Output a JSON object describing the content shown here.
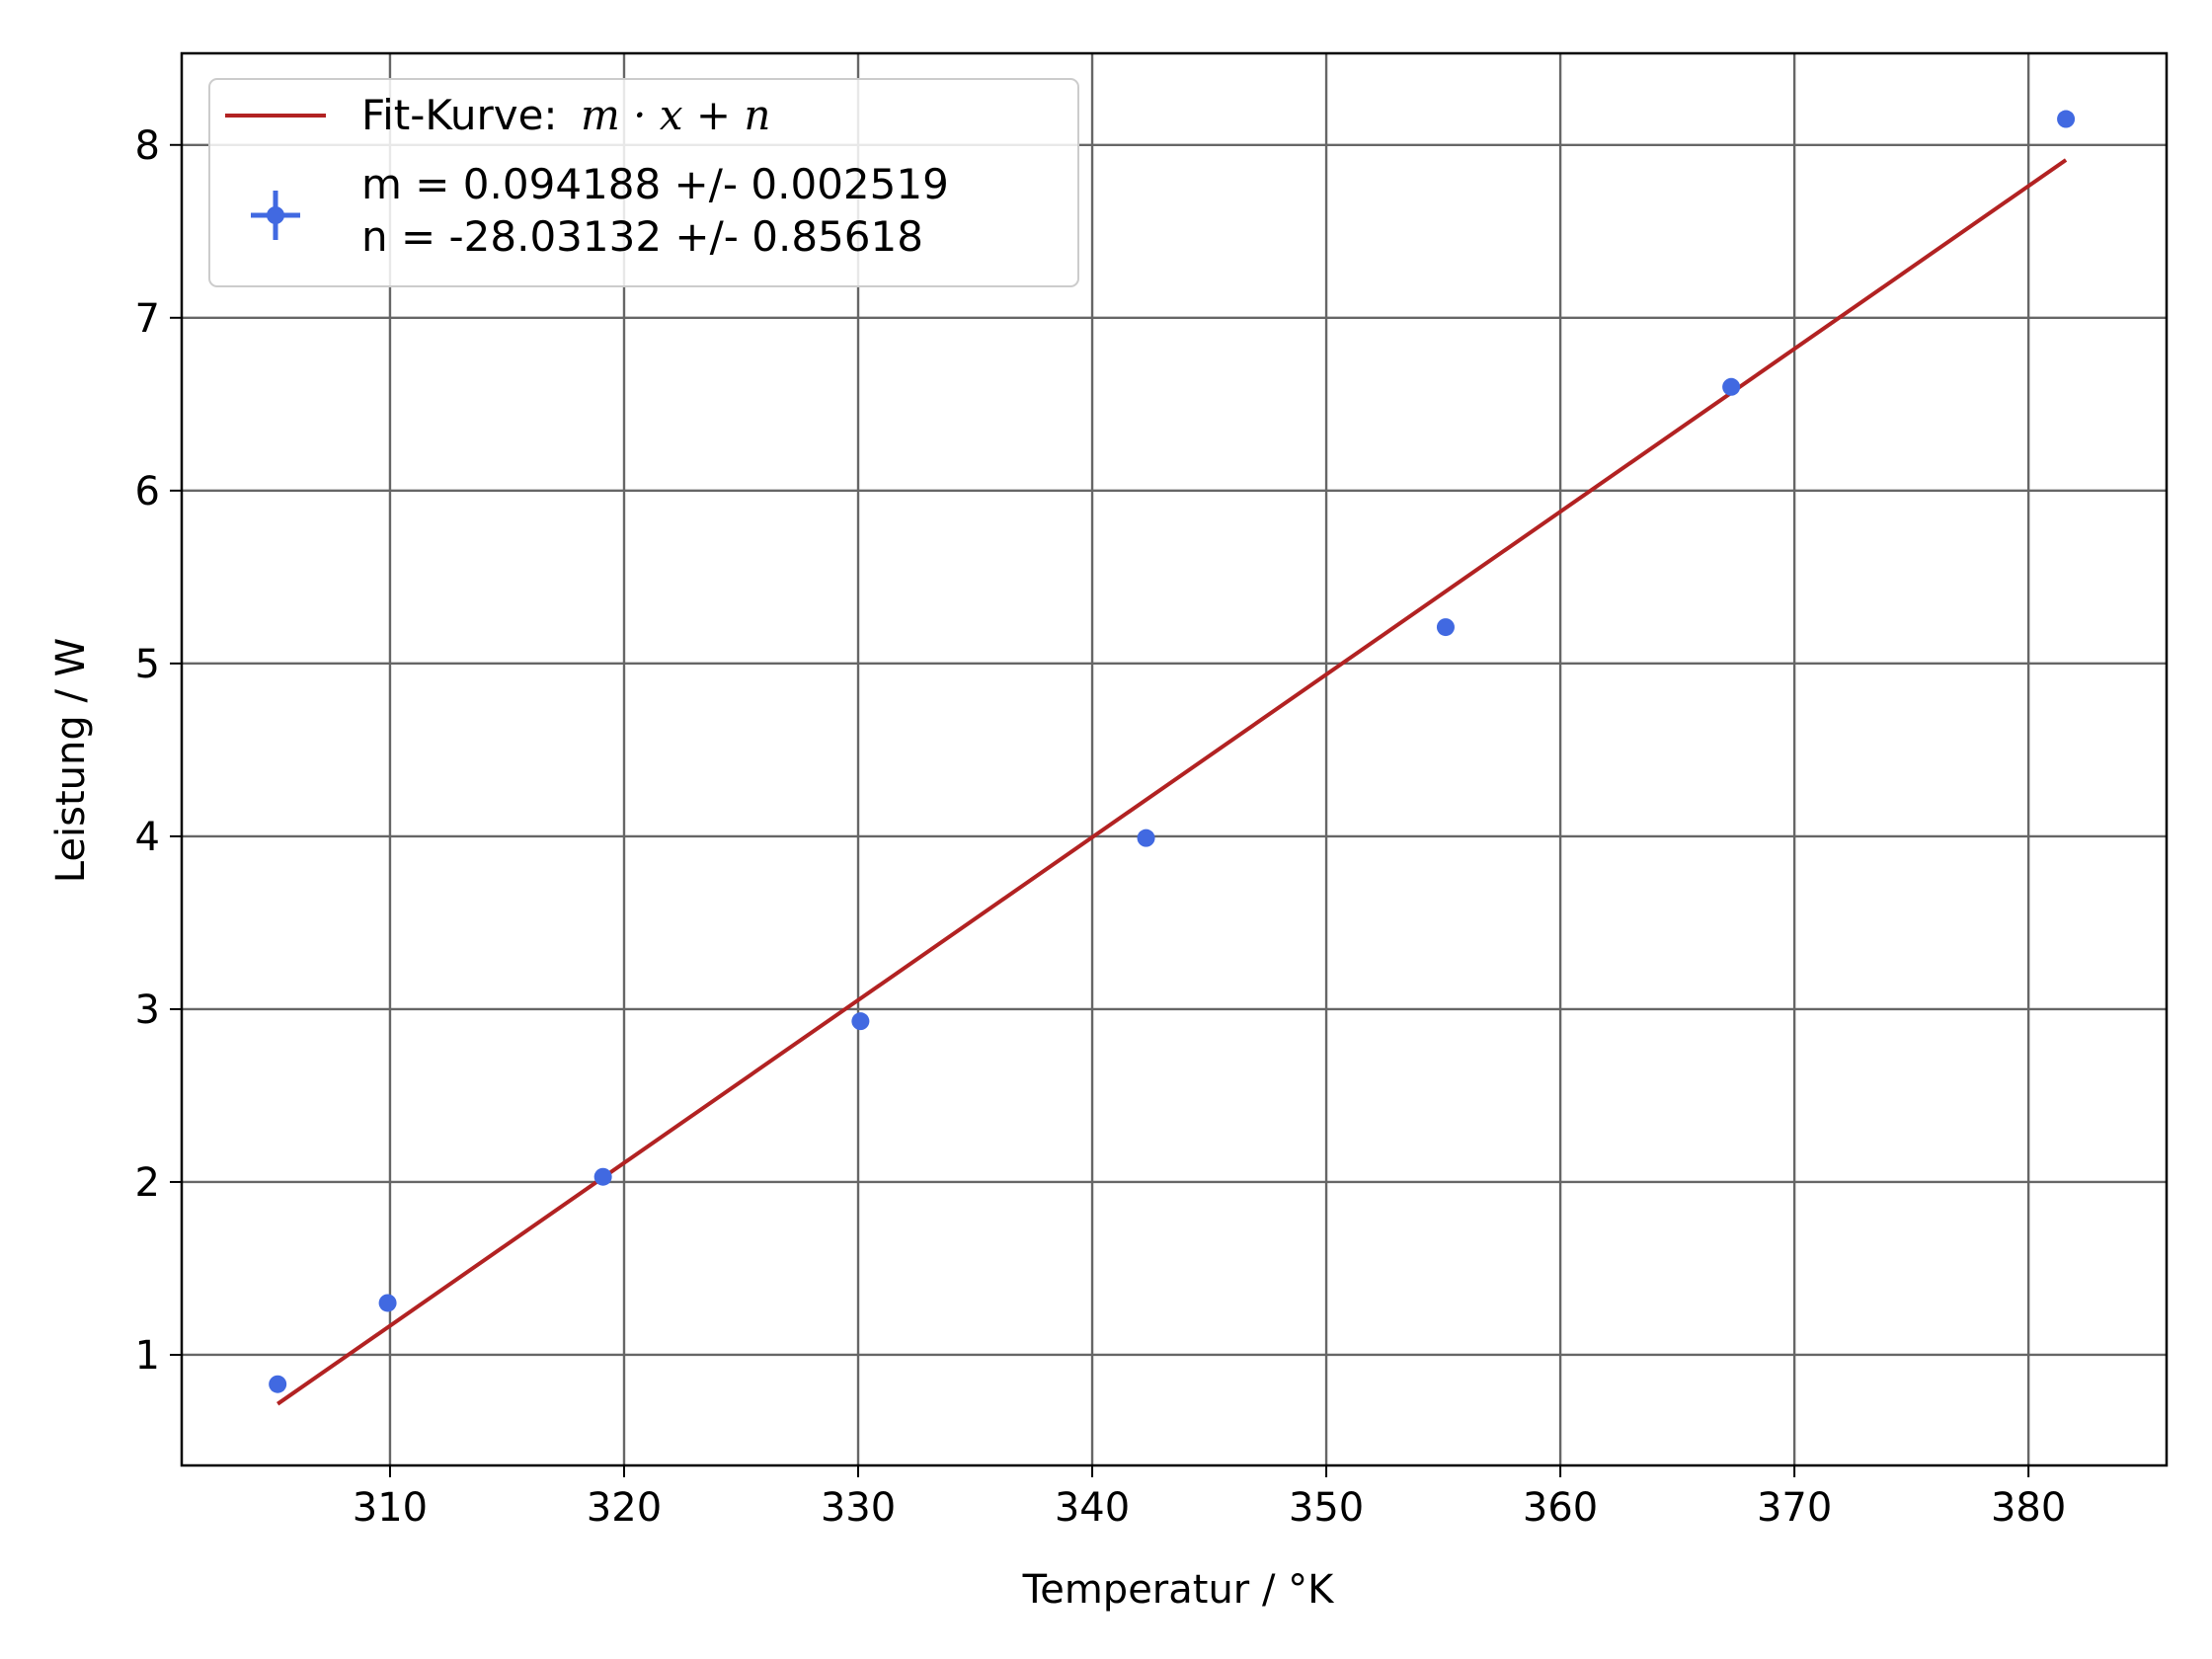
{
  "chart_data": {
    "type": "scatter",
    "xlabel": "Temperatur / °K",
    "ylabel": "Leistung / W",
    "xlim": [
      301.1,
      385.9
    ],
    "ylim": [
      0.36,
      8.53
    ],
    "grid": true,
    "legend_position": "top-left",
    "xticks": [
      310,
      320,
      330,
      340,
      350,
      360,
      370,
      380
    ],
    "yticks": [
      1,
      2,
      3,
      4,
      5,
      6,
      7,
      8
    ],
    "series": [
      {
        "kind": "points",
        "x": [
          305.2,
          309.9,
          319.1,
          330.1,
          342.3,
          355.1,
          367.3,
          381.6
        ],
        "y": [
          0.83,
          1.3,
          2.03,
          2.93,
          3.99,
          5.21,
          6.6,
          8.15
        ],
        "color": "#4169e1"
      },
      {
        "kind": "fit-line",
        "x": [
          305.2,
          381.6
        ],
        "y": [
          0.716,
          7.913
        ],
        "color": "#b22222"
      }
    ],
    "legend": {
      "fit_label": "Fit-Kurve:",
      "fit_formula": "m · x + n",
      "m_line": "m = 0.094188 +/- 0.002519",
      "n_line": "n = -28.03132 +/- 0.85618"
    }
  }
}
